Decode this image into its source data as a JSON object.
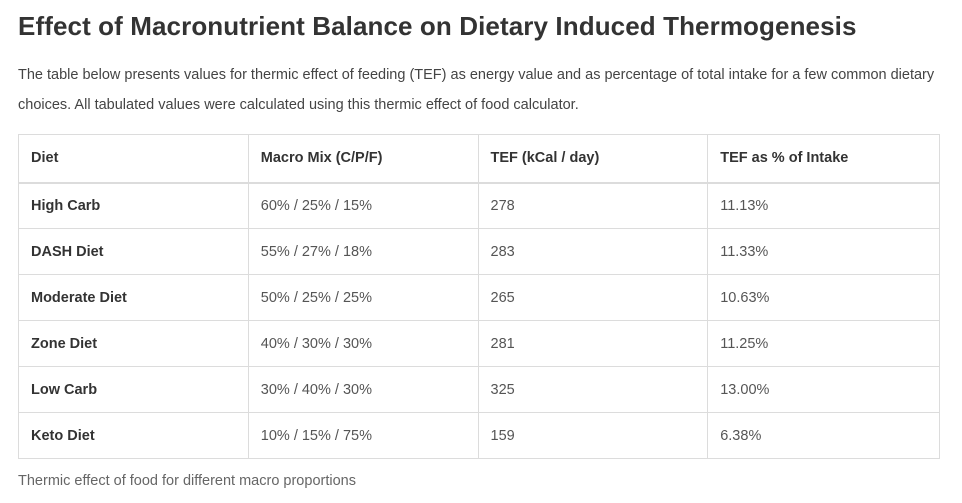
{
  "title": "Effect of Macronutrient Balance on Dietary Induced Thermogenesis",
  "intro": {
    "text_before_link": "The table below presents values for thermic effect of feeding (TEF) as energy value and as percentage of total intake for a few common dietary choices. All tabulated values were calculated using this ",
    "link_text": "thermic effect of food calculator",
    "text_after_link": "."
  },
  "table": {
    "headers": [
      "Diet",
      "Macro Mix (C/P/F)",
      "TEF (kCal / day)",
      "TEF as % of Intake"
    ],
    "rows": [
      [
        "High Carb",
        "60% / 25% / 15%",
        "278",
        "11.13%"
      ],
      [
        "DASH Diet",
        "55% / 27% / 18%",
        "283",
        "11.33%"
      ],
      [
        "Moderate Diet",
        "50% / 25% / 25%",
        "265",
        "10.63%"
      ],
      [
        "Zone Diet",
        "40% / 30% / 30%",
        "281",
        "11.25%"
      ],
      [
        "Low Carb",
        "30% / 40% / 30%",
        "325",
        "13.00%"
      ],
      [
        "Keto Diet",
        "10% / 15% / 75%",
        "159",
        "6.38%"
      ]
    ]
  },
  "caption": "Thermic effect of food for different macro proportions"
}
